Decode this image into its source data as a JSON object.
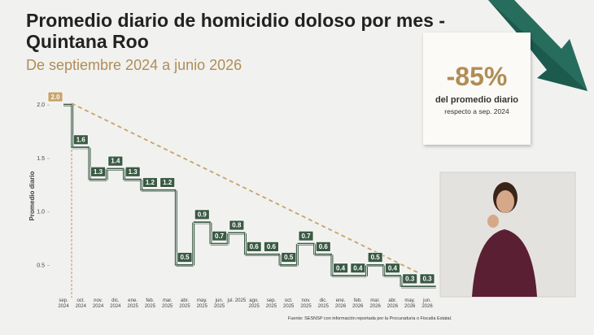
{
  "chart_data": {
    "type": "step",
    "title": "Promedio diario de homicidio doloso por mes - Quintana Roo",
    "subtitle": "De septiembre 2024 a junio 2026",
    "ylabel": "Promedio diario",
    "categories": [
      "sep. 2024",
      "oct. 2024",
      "nov. 2024",
      "dic. 2024",
      "ene. 2025",
      "feb. 2025",
      "mar. 2025",
      "abr. 2025",
      "may. 2025",
      "jun. 2025",
      "jul. 2025",
      "ago. 2025",
      "sep. 2025",
      "oct. 2025",
      "nov. 2025",
      "dic. 2025",
      "ene. 2026",
      "feb. 2026",
      "mar. 2026",
      "abr. 2026",
      "may. 2026",
      "jun. 2026"
    ],
    "values": [
      2.0,
      1.6,
      1.3,
      1.4,
      1.3,
      1.2,
      1.2,
      0.5,
      0.9,
      0.7,
      0.8,
      0.6,
      0.6,
      0.5,
      0.7,
      0.6,
      0.4,
      0.4,
      0.5,
      0.4,
      0.3,
      0.3
    ],
    "value_labels": [
      "2.0",
      "1.6",
      "1.3",
      "1.4",
      "1.3",
      "1.2",
      "1.2",
      "0.5",
      "0.9",
      "0.7",
      "0.8",
      "0.6",
      "0.6",
      "0.5",
      "0.7",
      "0.6",
      "0.4",
      "0.4",
      "0.5",
      "0.4",
      "0.3",
      "0.3"
    ],
    "color": "#3b5a44",
    "highlight_color": "#c6a468",
    "trend_color": "#c6a468",
    "ylim": [
      0.2,
      2.1
    ],
    "yticks": [
      0.5,
      {
        "value": 1.0,
        "label": "1.0"
      },
      1.5,
      {
        "value": 2.0,
        "label": "2.0"
      }
    ]
  },
  "callout": {
    "value": "-85%",
    "line1": "del promedio diario",
    "line2": "respecto a sep. 2024"
  },
  "source": "Fuente: SESNSP con información reportada por la Procuraduría o Fiscalía Estatal."
}
